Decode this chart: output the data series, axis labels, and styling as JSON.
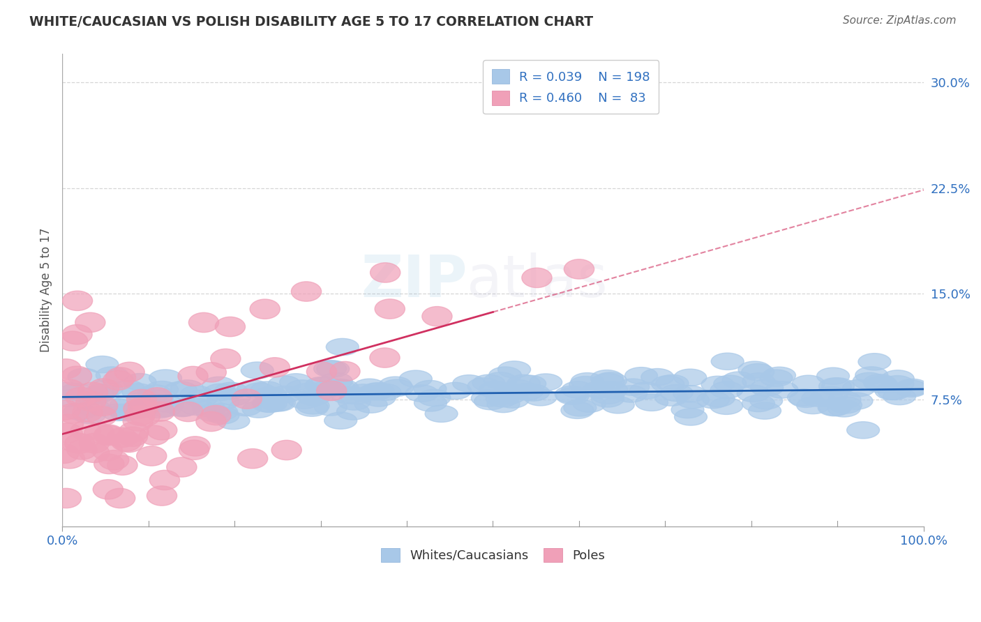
{
  "title": "WHITE/CAUCASIAN VS POLISH DISABILITY AGE 5 TO 17 CORRELATION CHART",
  "source": "Source: ZipAtlas.com",
  "ylabel": "Disability Age 5 to 17",
  "xlim": [
    0,
    100
  ],
  "ylim": [
    -1.5,
    32
  ],
  "yticks": [
    7.5,
    15.0,
    22.5,
    30.0
  ],
  "blue_R": 0.039,
  "blue_N": 198,
  "pink_R": 0.46,
  "pink_N": 83,
  "blue_color": "#a8c8e8",
  "pink_color": "#f0a0b8",
  "blue_line_color": "#2060b0",
  "pink_line_color": "#d03060",
  "blue_label": "Whites/Caucasians",
  "pink_label": "Poles",
  "legend_R_color": "#3070c0",
  "title_color": "#333333",
  "source_color": "#666666",
  "background_color": "#ffffff",
  "grid_color": "#cccccc"
}
